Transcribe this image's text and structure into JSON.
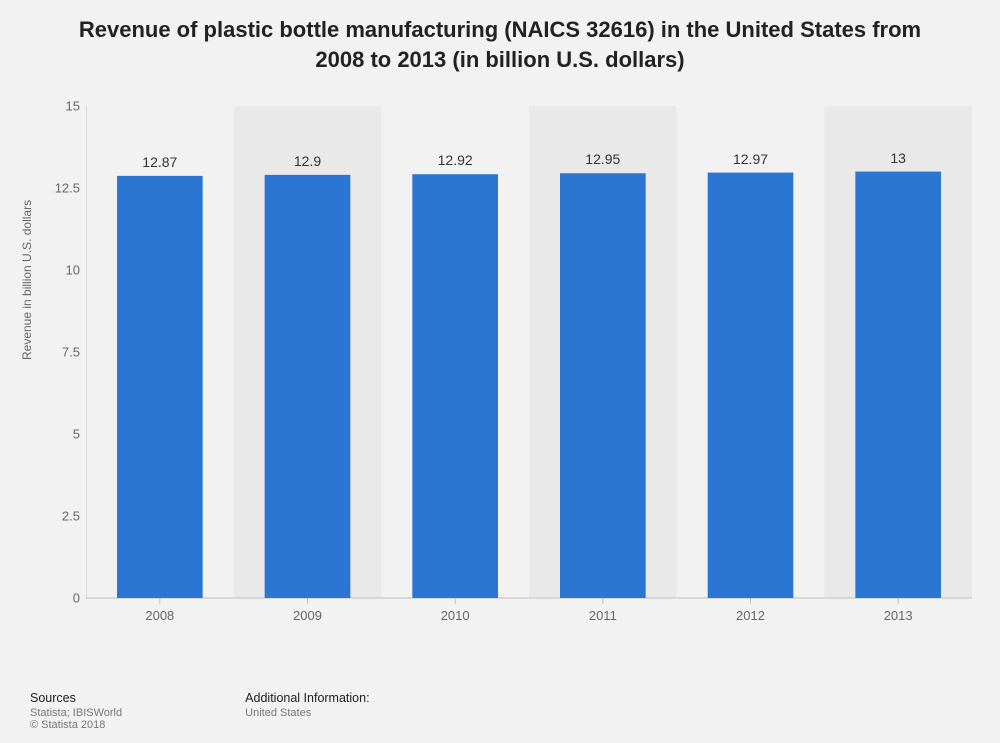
{
  "chart": {
    "type": "bar",
    "title": "Revenue of plastic bottle manufacturing (NAICS 32616) in the United States from 2008 to 2013 (in billion U.S. dollars)",
    "y_axis_label": "Revenue in billion U.S. dollars",
    "categories": [
      "2008",
      "2009",
      "2010",
      "2011",
      "2012",
      "2013"
    ],
    "values": [
      12.87,
      12.9,
      12.92,
      12.95,
      12.97,
      13
    ],
    "value_labels": [
      "12.87",
      "12.9",
      "12.92",
      "12.95",
      "12.97",
      "13"
    ],
    "bar_color": "#2a76d2",
    "band_color": "#e9e9e9",
    "background_color": "#f2f2f2",
    "axis_color": "#bfbfbf",
    "tick_color": "#bfbfbf",
    "ylim": [
      0,
      15
    ],
    "ytick_step": 2.5,
    "ytick_labels": [
      "0",
      "2.5",
      "5",
      "7.5",
      "10",
      "12.5",
      "15"
    ],
    "bar_width_ratio": 0.58,
    "label_fontsize": 14,
    "tick_fontsize": 13,
    "title_fontsize": 22
  },
  "footer": {
    "sources_head": "Sources",
    "sources_line1": "Statista; IBISWorld",
    "sources_line2": "© Statista 2018",
    "additional_head": "Additional Information:",
    "additional_line1": "United States"
  }
}
